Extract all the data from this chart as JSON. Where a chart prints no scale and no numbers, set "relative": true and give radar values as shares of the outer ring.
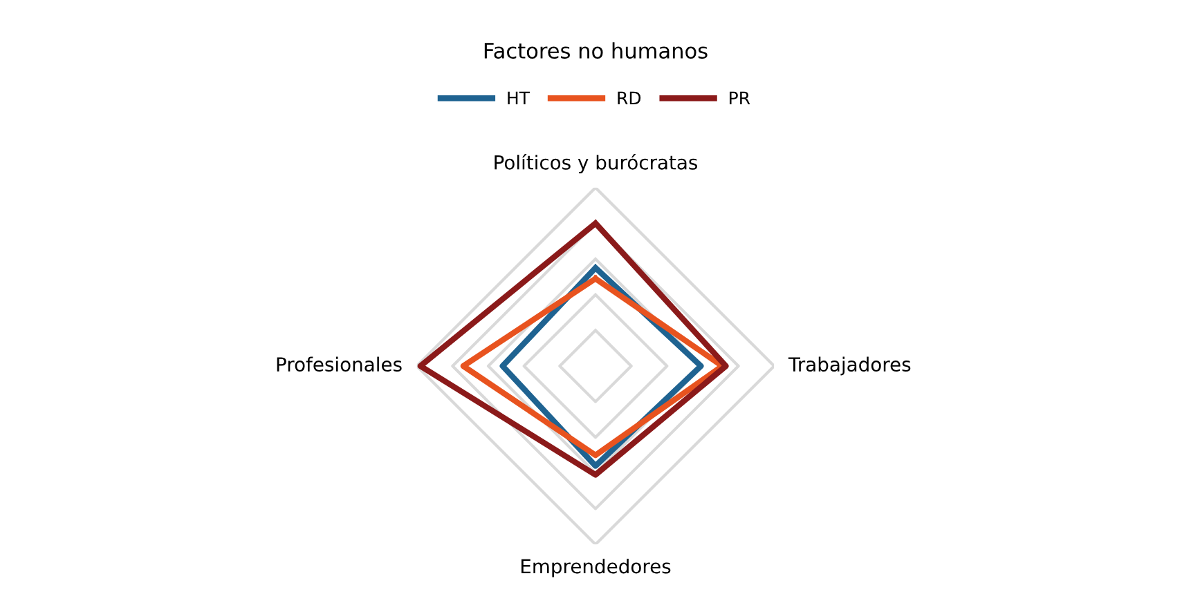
{
  "chart_data": {
    "type": "radar",
    "title": "Factores no humanos",
    "categories": [
      "Políticos y burócratas",
      "Trabajadores",
      "Emprendedores",
      "Profesionales"
    ],
    "relative": true,
    "grid": true,
    "legend": "top",
    "series": [
      {
        "name": "HT",
        "color": "#1f6391",
        "values": [
          0.55,
          0.59,
          0.56,
          0.52
        ]
      },
      {
        "name": "RD",
        "color": "#e8531f",
        "values": [
          0.49,
          0.71,
          0.5,
          0.74
        ]
      },
      {
        "name": "PR",
        "color": "#8b1a1a",
        "values": [
          0.8,
          0.73,
          0.61,
          0.98
        ]
      }
    ]
  }
}
